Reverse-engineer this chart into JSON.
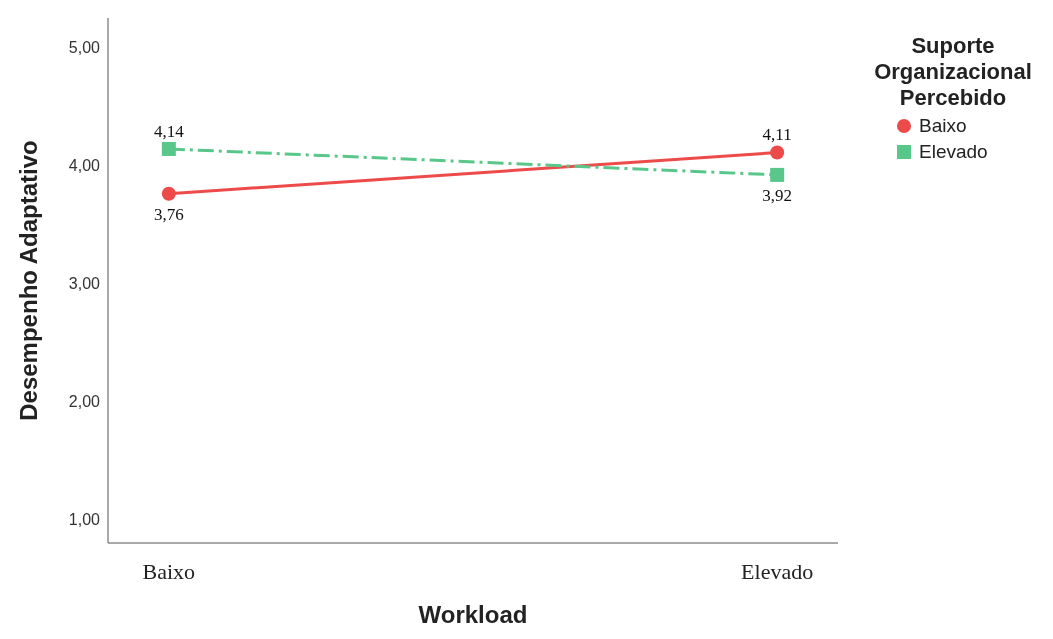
{
  "chart_data": {
    "type": "line",
    "xlabel": "Workload",
    "ylabel": "Desempenho Adaptativo",
    "legend_title": "Suporte Organizacional Percebido",
    "categories": [
      "Baixo",
      "Elevado"
    ],
    "series": [
      {
        "name": "Baixo",
        "color": "#ed4a4a",
        "values": [
          3.76,
          4.11
        ],
        "value_labels": [
          "3,76",
          "4,11"
        ],
        "marker": "circle",
        "line_style": "solid"
      },
      {
        "name": "Elevado",
        "color": "#5ac78a",
        "values": [
          4.14,
          3.92
        ],
        "value_labels": [
          "4,14",
          "3,92"
        ],
        "marker": "square",
        "line_style": "dashed"
      }
    ],
    "ylim": [
      0.8,
      5.25
    ],
    "yticks": [
      {
        "value": 1,
        "label": "1,00"
      },
      {
        "value": 2,
        "label": "2,00"
      },
      {
        "value": 3,
        "label": "3,00"
      },
      {
        "value": 4,
        "label": "4,00"
      },
      {
        "value": 5,
        "label": "5,00"
      }
    ],
    "grid": false,
    "legend": "top right"
  }
}
